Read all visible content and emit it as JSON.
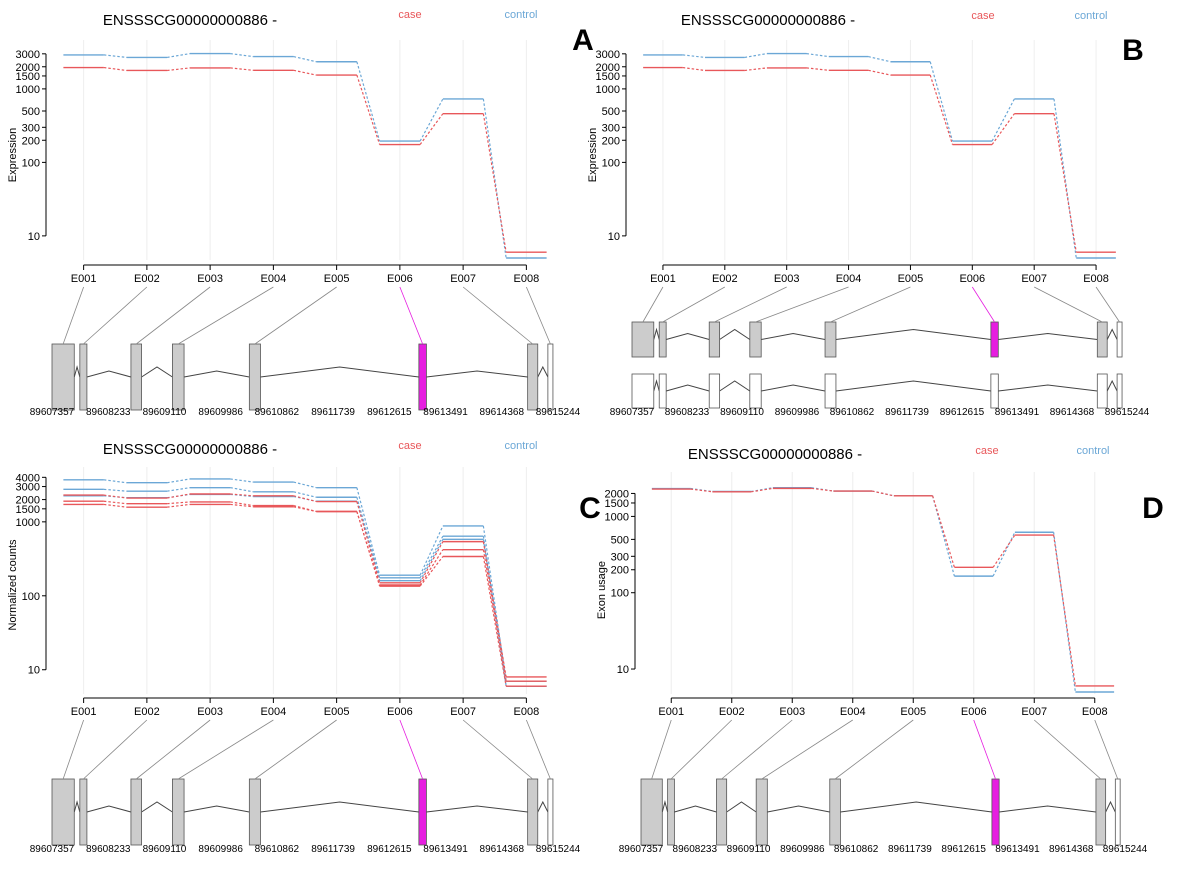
{
  "colors": {
    "case": "#e8575a",
    "control": "#6ba7d6",
    "highlight": "#e61ee0",
    "exon": "#cccccc",
    "text": "#000000"
  },
  "chart_data": [
    {
      "panel_letter": "A",
      "type": "line",
      "title": "ENSSSCG00000000886 -",
      "ylabel": "Expression",
      "ylim": [
        5,
        3600
      ],
      "yscale": "log",
      "yticks": [
        10,
        100,
        200,
        300,
        500,
        1000,
        1500,
        2000,
        3000
      ],
      "categories": [
        "E001",
        "E002",
        "E003",
        "E004",
        "E005",
        "E006",
        "E007",
        "E008"
      ],
      "legend": {
        "placement": "top",
        "entries": [
          "case",
          "control"
        ]
      },
      "series": [
        {
          "name": "control",
          "values": [
            2900,
            2680,
            3020,
            2750,
            2340,
            195,
            730,
            5
          ]
        },
        {
          "name": "case",
          "values": [
            1950,
            1780,
            1930,
            1790,
            1540,
            175,
            460,
            6
          ]
        }
      ],
      "gene_model": {
        "tracks": 1
      },
      "coordinates": [
        "89607357",
        "89608233",
        "89609110",
        "89609986",
        "89610862",
        "89611739",
        "89612615",
        "89613491",
        "89614368",
        "89615244"
      ]
    },
    {
      "panel_letter": "B",
      "type": "line",
      "title": "ENSSSCG00000000886 -",
      "ylabel": "Expression",
      "ylim": [
        5,
        3600
      ],
      "yscale": "log",
      "yticks": [
        10,
        100,
        200,
        300,
        500,
        1000,
        1500,
        2000,
        3000
      ],
      "categories": [
        "E001",
        "E002",
        "E003",
        "E004",
        "E005",
        "E006",
        "E007",
        "E008"
      ],
      "legend": {
        "placement": "top",
        "entries": [
          "case",
          "control"
        ]
      },
      "series": [
        {
          "name": "control",
          "values": [
            2900,
            2680,
            3020,
            2750,
            2340,
            195,
            730,
            5
          ]
        },
        {
          "name": "case",
          "values": [
            1950,
            1780,
            1930,
            1790,
            1540,
            175,
            460,
            6
          ]
        }
      ],
      "gene_model": {
        "tracks": 2
      },
      "coordinates": [
        "89607357",
        "89608233",
        "89609110",
        "89609986",
        "89610862",
        "89611739",
        "89612615",
        "89613491",
        "89614368",
        "89615244"
      ]
    },
    {
      "panel_letter": "C",
      "type": "line",
      "title": "ENSSSCG00000000886 -",
      "ylabel": "Normalized counts",
      "ylim": [
        5,
        4300
      ],
      "yscale": "log",
      "yticks": [
        10,
        100,
        1000,
        1500,
        2000,
        3000,
        4000
      ],
      "categories": [
        "E001",
        "E002",
        "E003",
        "E004",
        "E005",
        "E006",
        "E007",
        "E008"
      ],
      "legend": {
        "placement": "top",
        "entries": [
          "case",
          "control"
        ]
      },
      "series": [
        {
          "name": "control",
          "values": [
            3700,
            3380,
            3800,
            3450,
            2900,
            190,
            880,
            7
          ]
        },
        {
          "name": "control",
          "values": [
            2750,
            2600,
            2900,
            2550,
            2150,
            175,
            640,
            6
          ]
        },
        {
          "name": "control",
          "values": [
            2250,
            2120,
            2350,
            2200,
            1900,
            160,
            580,
            6
          ]
        },
        {
          "name": "case",
          "values": [
            2300,
            2100,
            2380,
            2250,
            1880,
            150,
            540,
            8
          ]
        },
        {
          "name": "case",
          "values": [
            1900,
            1760,
            1860,
            1660,
            1380,
            140,
            420,
            7
          ]
        },
        {
          "name": "case",
          "values": [
            1720,
            1580,
            1720,
            1600,
            1380,
            135,
            340,
            6
          ]
        }
      ],
      "gene_model": {
        "tracks": 1
      },
      "coordinates": [
        "89607357",
        "89608233",
        "89609110",
        "89609986",
        "89610862",
        "89611739",
        "89612615",
        "89613491",
        "89614368",
        "89615244"
      ]
    },
    {
      "panel_letter": "D",
      "type": "line",
      "title": "ENSSSCG00000000886 -",
      "ylabel": "Exon usage",
      "ylim": [
        5,
        3000
      ],
      "yscale": "log",
      "yticks": [
        10,
        100,
        200,
        300,
        500,
        1000,
        1500,
        2000
      ],
      "categories": [
        "E001",
        "E002",
        "E003",
        "E004",
        "E005",
        "E006",
        "E007",
        "E008"
      ],
      "legend": {
        "placement": "top",
        "entries": [
          "case",
          "control"
        ]
      },
      "series": [
        {
          "name": "control",
          "values": [
            2320,
            2120,
            2380,
            2150,
            1860,
            165,
            620,
            5
          ]
        },
        {
          "name": "case",
          "values": [
            2280,
            2100,
            2330,
            2150,
            1860,
            215,
            570,
            6
          ]
        }
      ],
      "gene_model": {
        "tracks": 1
      },
      "coordinates": [
        "89607357",
        "89608233",
        "89609110",
        "89609986",
        "89610862",
        "89611739",
        "89612615",
        "89613491",
        "89614368",
        "89615244"
      ]
    }
  ]
}
